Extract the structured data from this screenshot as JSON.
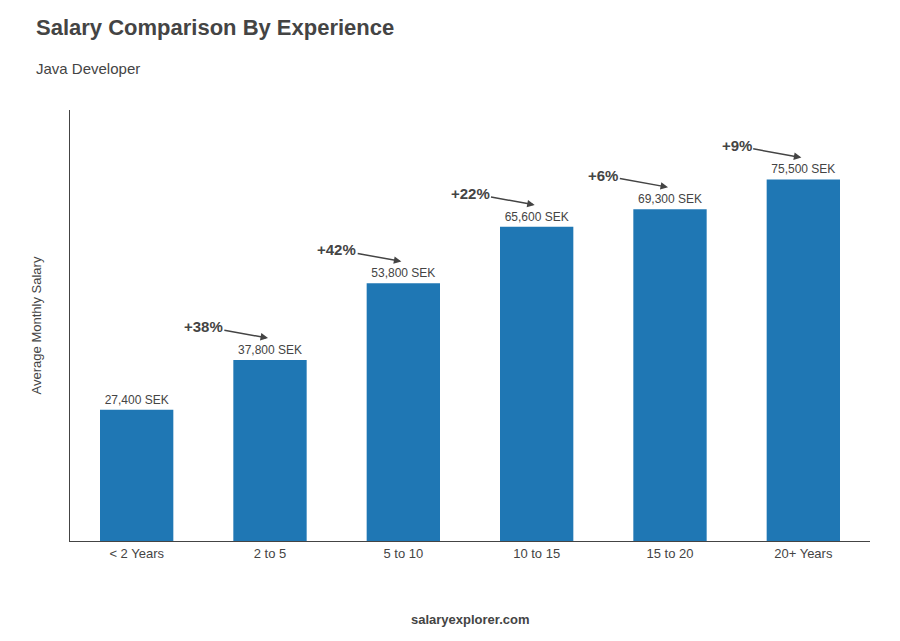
{
  "chart_data": {
    "type": "bar",
    "title": "Salary Comparison By Experience",
    "subtitle": "Java Developer",
    "ylabel": "Average Monthly Salary",
    "categories": [
      "< 2 Years",
      "2 to 5",
      "5 to 10",
      "10 to 15",
      "15 to 20",
      "20+ Years"
    ],
    "values": [
      27400,
      37800,
      53800,
      65600,
      69300,
      75500
    ],
    "value_labels": [
      "27,400 SEK",
      "37,800 SEK",
      "53,800 SEK",
      "65,600 SEK",
      "69,300 SEK",
      "75,500 SEK"
    ],
    "data_labels": true,
    "annotations": [
      "+38%",
      "+42%",
      "+22%",
      "+6%",
      "+9%"
    ],
    "footer": [
      "salary",
      "explorer",
      ".com"
    ],
    "ylim": [
      0,
      90000
    ],
    "tick_labels": "x",
    "grid": false
  }
}
